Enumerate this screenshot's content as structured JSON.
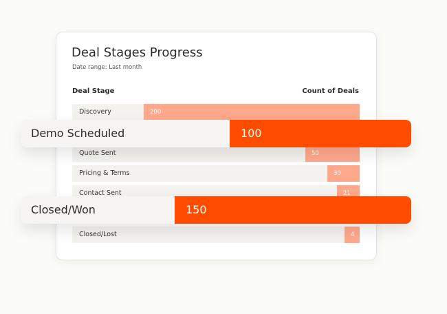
{
  "chart_data": {
    "type": "bar",
    "orientation": "horizontal",
    "title": "Deal Stages Progress",
    "subtitle": "Date range: Last month",
    "category_header": "Deal Stage",
    "value_header": "Count of Deals",
    "xlim": [
      0,
      200
    ],
    "grid": false,
    "colors": {
      "bar": "#ffa88c",
      "highlight_bar": "#ff4c00",
      "row_background": "#f3f2ef"
    },
    "rows": [
      {
        "label": "Discovery",
        "value": 200
      },
      {
        "label": "Quote Sent",
        "value": 50
      },
      {
        "label": "Pricing & Terms",
        "value": 30
      },
      {
        "label": "Contact Sent",
        "value": 21
      },
      {
        "label": "Closed/Lost",
        "value": 4
      }
    ],
    "highlights": [
      {
        "label": "Demo Scheduled",
        "value": 100
      },
      {
        "label": "Closed/Won",
        "value": 150
      }
    ]
  }
}
